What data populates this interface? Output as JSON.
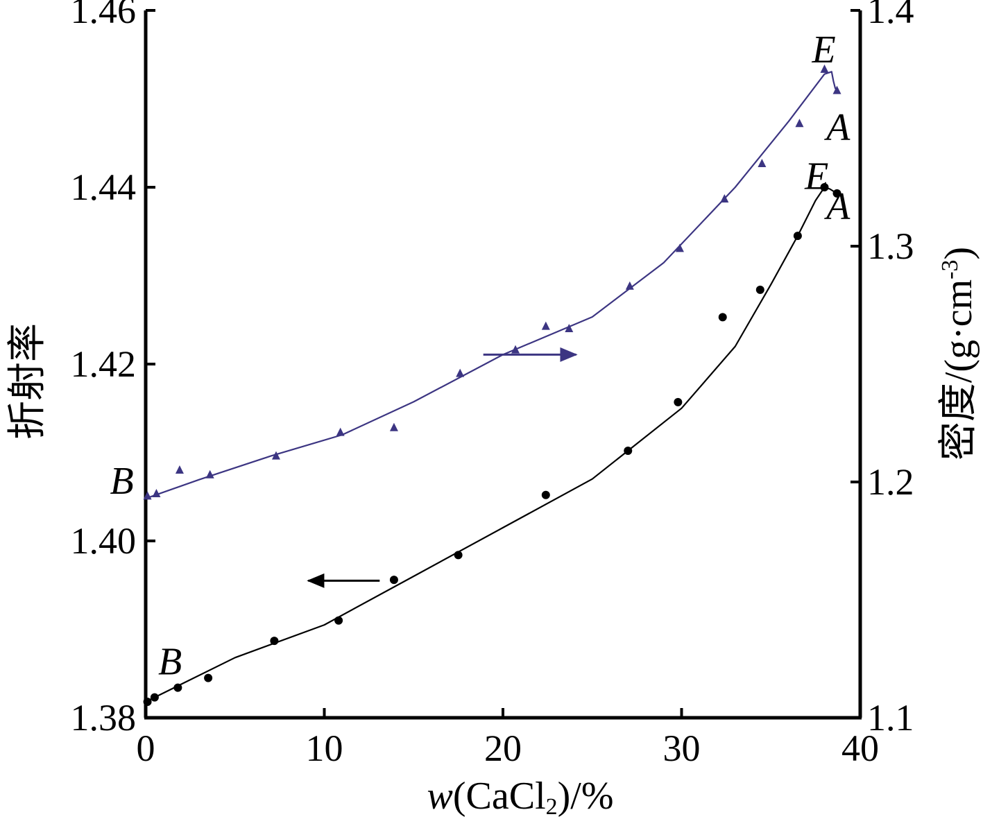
{
  "chart_data": {
    "type": "scatter",
    "title": "",
    "xlabel": {
      "italic": "w",
      "main": "(CaCl",
      "sub": "2",
      "tail": ")/%"
    },
    "ylabel_left": "折射率",
    "ylabel_right": {
      "main": "密度/(g·cm",
      "sup": "-3",
      "tail": ")"
    },
    "xlim": [
      0,
      40
    ],
    "ylim_left": [
      1.38,
      1.46
    ],
    "ylim_right": [
      1.1,
      1.4
    ],
    "grid": false,
    "legend": "none",
    "x_ticks": [
      "0",
      "10",
      "20",
      "30",
      "40"
    ],
    "x_tick_values": [
      0,
      10,
      20,
      30,
      40
    ],
    "y_left_ticks": [
      "1.38",
      "1.40",
      "1.42",
      "1.44",
      "1.46"
    ],
    "y_left_tick_values": [
      1.38,
      1.4,
      1.42,
      1.44,
      1.46
    ],
    "y_right_ticks": [
      "1.1",
      "1.2",
      "1.3",
      "1.4"
    ],
    "y_right_tick_values": [
      1.1,
      1.2,
      1.3,
      1.4
    ],
    "series": [
      {
        "axis": "left",
        "color": "#000000",
        "marker": "circle",
        "points": [
          [
            0.1,
            1.3818
          ],
          [
            0.5,
            1.3823
          ],
          [
            1.8,
            1.3834
          ],
          [
            3.5,
            1.3845
          ],
          [
            7.2,
            1.3887
          ],
          [
            10.8,
            1.391
          ],
          [
            13.9,
            1.3956
          ],
          [
            17.5,
            1.3984
          ],
          [
            22.4,
            1.4052
          ],
          [
            27.0,
            1.4102
          ],
          [
            29.8,
            1.4157
          ],
          [
            32.3,
            1.4253
          ],
          [
            34.4,
            1.4284
          ],
          [
            36.5,
            1.4345
          ],
          [
            38.0,
            1.44
          ],
          [
            38.7,
            1.4393
          ]
        ],
        "curve": [
          [
            0.0,
            1.3818
          ],
          [
            2.0,
            1.3838
          ],
          [
            5.0,
            1.3868
          ],
          [
            10.0,
            1.3905
          ],
          [
            15.0,
            1.396
          ],
          [
            20.0,
            1.4015
          ],
          [
            25.0,
            1.407
          ],
          [
            30.0,
            1.415
          ],
          [
            33.0,
            1.422
          ],
          [
            35.0,
            1.429
          ],
          [
            36.5,
            1.4345
          ],
          [
            37.5,
            1.4385
          ],
          [
            38.0,
            1.44
          ],
          [
            38.3,
            1.4398
          ],
          [
            38.7,
            1.4393
          ]
        ],
        "labels": [
          {
            "text": "B",
            "x": 0.7,
            "y": 1.3849
          },
          {
            "text": "E",
            "x": 36.9,
            "y": 1.4398
          },
          {
            "text": "A",
            "x": 38.1,
            "y": 1.4364
          }
        ],
        "arrow": {
          "from_x": 13.1,
          "to_x": 9.1,
          "y": 1.3955
        }
      },
      {
        "axis": "right",
        "color": "#3c3582",
        "marker": "triangle",
        "points": [
          [
            0.1,
            1.194
          ],
          [
            0.6,
            1.195
          ],
          [
            1.9,
            1.205
          ],
          [
            3.6,
            1.203
          ],
          [
            7.3,
            1.211
          ],
          [
            10.9,
            1.221
          ],
          [
            13.9,
            1.223
          ],
          [
            17.6,
            1.246
          ],
          [
            20.7,
            1.256
          ],
          [
            22.4,
            1.266
          ],
          [
            23.7,
            1.265
          ],
          [
            27.1,
            1.283
          ],
          [
            29.9,
            1.299
          ],
          [
            32.4,
            1.32
          ],
          [
            34.5,
            1.335
          ],
          [
            36.6,
            1.352
          ],
          [
            38.0,
            1.375
          ],
          [
            38.7,
            1.366
          ]
        ],
        "curve": [
          [
            0.0,
            1.193
          ],
          [
            3.0,
            1.201
          ],
          [
            7.0,
            1.211
          ],
          [
            11.0,
            1.22
          ],
          [
            15.0,
            1.234
          ],
          [
            20.0,
            1.254
          ],
          [
            25.0,
            1.27
          ],
          [
            29.0,
            1.293
          ],
          [
            33.0,
            1.325
          ],
          [
            36.0,
            1.353
          ],
          [
            38.0,
            1.373
          ],
          [
            38.4,
            1.374
          ],
          [
            38.5,
            1.37
          ],
          [
            38.6,
            1.367
          ],
          [
            38.7,
            1.366
          ]
        ],
        "labels": [
          {
            "text": "B",
            "x": -2.0,
            "y": 1.195
          },
          {
            "text": "E",
            "x": 37.3,
            "y": 1.378
          },
          {
            "text": "A",
            "x": 38.1,
            "y": 1.345
          }
        ],
        "arrow": {
          "from_x": 18.9,
          "to_x": 24.1,
          "y": 1.254
        }
      }
    ]
  }
}
